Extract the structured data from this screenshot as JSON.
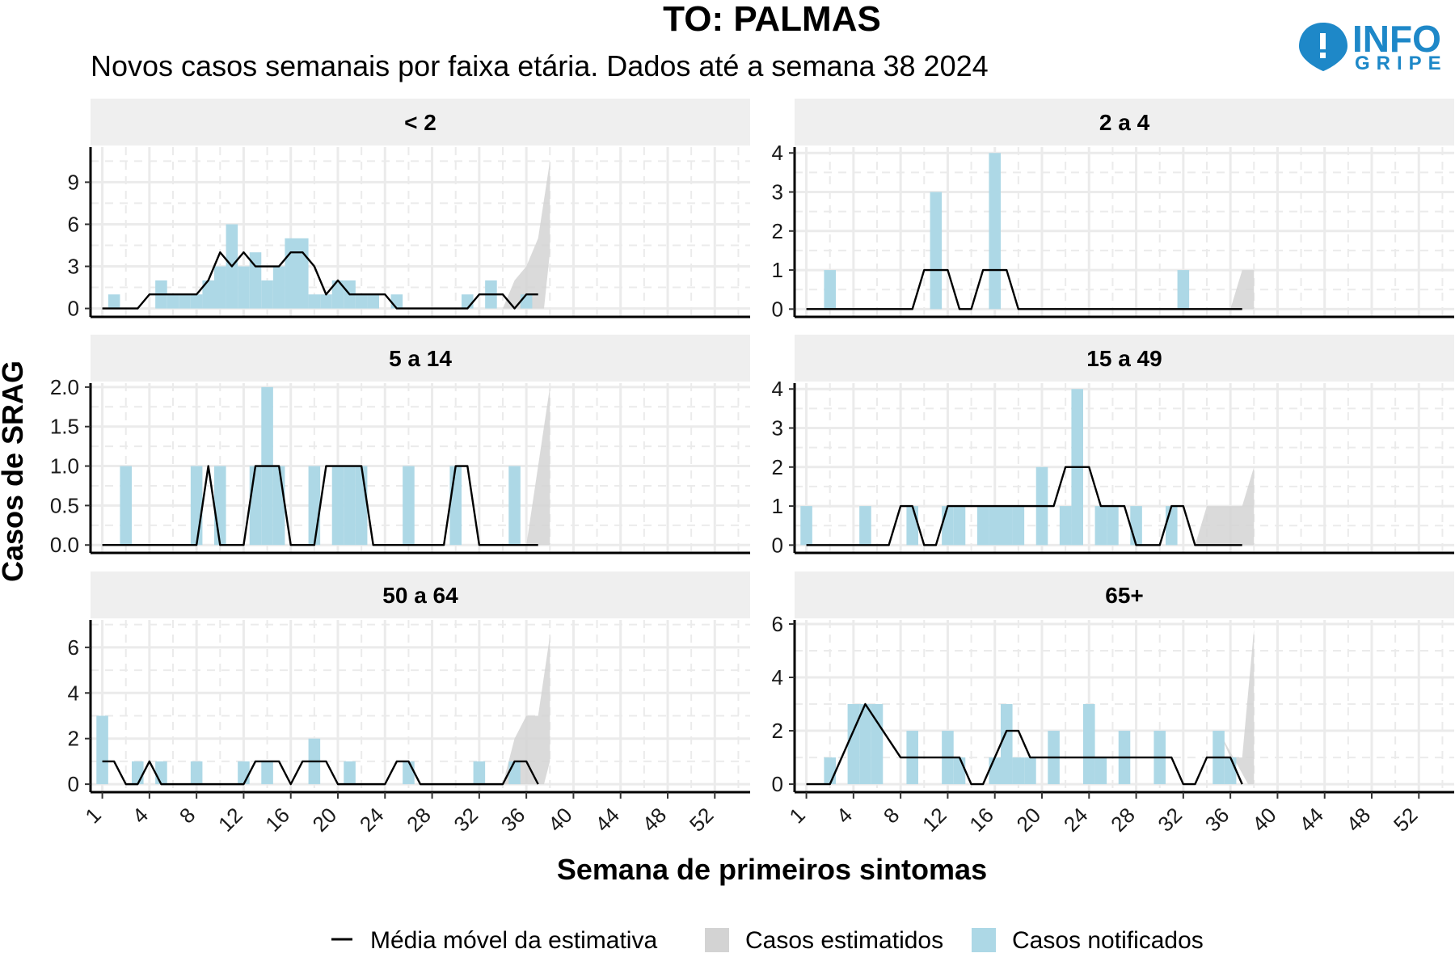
{
  "header": {
    "title": "TO: PALMAS",
    "subtitle": "Novos casos semanais por faixa etária. Dados até a semana 38 2024"
  },
  "logo": {
    "line1": "INFO",
    "line2": "GRIPE",
    "color": "#1e88c8"
  },
  "colors": {
    "notified": "#add8e6",
    "estimated": "#d3d3d3",
    "moving_avg": "#000000",
    "strip_bg": "#efefef",
    "grid": "#ebebeb"
  },
  "axis": {
    "x_title": "Semana de primeiros sintomas",
    "y_title": "Casos de SRAG",
    "x_tick_labels": [
      "1",
      "4",
      "8",
      "12",
      "16",
      "20",
      "24",
      "28",
      "32",
      "36",
      "40",
      "44",
      "48",
      "52"
    ]
  },
  "legend": {
    "position": "bottom",
    "items": [
      {
        "label": "Média móvel da estimativa",
        "kind": "line"
      },
      {
        "label": "Casos estimatidos",
        "kind": "estimated"
      },
      {
        "label": "Casos notificados",
        "kind": "notified"
      }
    ]
  },
  "chart_data": [
    {
      "type": "bar",
      "panel": "< 2",
      "xlim": [
        -1,
        55
      ],
      "ylim": [
        -0.6,
        11.5
      ],
      "y_ticks": [
        0,
        3,
        6,
        9
      ],
      "y_tick_labels": [
        "0",
        "3",
        "6",
        "9"
      ],
      "notified": [
        [
          1,
          1
        ],
        [
          5,
          2
        ],
        [
          6,
          1
        ],
        [
          7,
          1
        ],
        [
          8,
          1
        ],
        [
          9,
          2
        ],
        [
          10,
          3
        ],
        [
          11,
          6
        ],
        [
          12,
          3
        ],
        [
          13,
          4
        ],
        [
          14,
          2
        ],
        [
          15,
          3
        ],
        [
          16,
          5
        ],
        [
          17,
          5
        ],
        [
          18,
          1
        ],
        [
          19,
          1
        ],
        [
          20,
          2
        ],
        [
          21,
          2
        ],
        [
          22,
          1
        ],
        [
          23,
          1
        ],
        [
          25,
          1
        ],
        [
          31,
          1
        ],
        [
          33,
          2
        ],
        [
          36,
          1
        ]
      ],
      "estimated_upper": [
        [
          34,
          0
        ],
        [
          35,
          2
        ],
        [
          36,
          3
        ],
        [
          37,
          5
        ],
        [
          38,
          10.5
        ]
      ],
      "estimated_lower": [
        [
          38,
          4
        ]
      ],
      "moving_avg": [
        [
          0,
          0
        ],
        [
          3,
          0
        ],
        [
          4,
          1
        ],
        [
          8,
          1
        ],
        [
          9,
          2
        ],
        [
          10,
          4
        ],
        [
          11,
          3
        ],
        [
          12,
          4
        ],
        [
          13,
          3
        ],
        [
          15,
          3
        ],
        [
          16,
          4
        ],
        [
          17,
          4
        ],
        [
          18,
          3
        ],
        [
          19,
          1
        ],
        [
          20,
          2
        ],
        [
          21,
          1
        ],
        [
          24,
          1
        ],
        [
          25,
          0
        ],
        [
          31,
          0
        ],
        [
          32,
          1
        ],
        [
          34,
          1
        ],
        [
          35,
          0
        ],
        [
          36,
          1
        ],
        [
          37,
          1
        ]
      ]
    },
    {
      "type": "bar",
      "panel": "2 a 4",
      "xlim": [
        -1,
        55
      ],
      "ylim": [
        -0.2,
        4.15
      ],
      "y_ticks": [
        0,
        1,
        2,
        3,
        4
      ],
      "y_tick_labels": [
        "0",
        "1",
        "2",
        "3",
        "4"
      ],
      "notified": [
        [
          2,
          1
        ],
        [
          11,
          3
        ],
        [
          16,
          4
        ],
        [
          32,
          1
        ]
      ],
      "estimated_upper": [
        [
          36,
          0
        ],
        [
          37,
          1
        ],
        [
          38,
          1
        ]
      ],
      "estimated_lower": [
        [
          38,
          0
        ]
      ],
      "moving_avg": [
        [
          0,
          0
        ],
        [
          9,
          0
        ],
        [
          10,
          1
        ],
        [
          12,
          1
        ],
        [
          13,
          0
        ],
        [
          14,
          0
        ],
        [
          15,
          1
        ],
        [
          17,
          1
        ],
        [
          18,
          0
        ],
        [
          37,
          0
        ]
      ]
    },
    {
      "type": "bar",
      "panel": "5 a 14",
      "xlim": [
        -1,
        55
      ],
      "ylim": [
        -0.1,
        2.05
      ],
      "y_ticks": [
        0,
        0.5,
        1,
        1.5,
        2
      ],
      "y_tick_labels": [
        "0.0",
        "0.5",
        "1.0",
        "1.5",
        "2.0"
      ],
      "notified": [
        [
          2,
          1
        ],
        [
          8,
          1
        ],
        [
          10,
          1
        ],
        [
          13,
          1
        ],
        [
          14,
          2
        ],
        [
          15,
          1
        ],
        [
          18,
          1
        ],
        [
          20,
          1
        ],
        [
          21,
          1
        ],
        [
          22,
          1
        ],
        [
          26,
          1
        ],
        [
          30,
          1
        ],
        [
          35,
          1
        ]
      ],
      "estimated_upper": [
        [
          36,
          0
        ],
        [
          37,
          1
        ],
        [
          38,
          2
        ]
      ],
      "estimated_lower": [
        [
          38,
          0
        ]
      ],
      "moving_avg": [
        [
          0,
          0
        ],
        [
          8,
          0
        ],
        [
          9,
          1
        ],
        [
          10,
          0
        ],
        [
          12,
          0
        ],
        [
          13,
          1
        ],
        [
          15,
          1
        ],
        [
          16,
          0
        ],
        [
          18,
          0
        ],
        [
          19,
          1
        ],
        [
          22,
          1
        ],
        [
          23,
          0
        ],
        [
          29,
          0
        ],
        [
          30,
          1
        ],
        [
          31,
          1
        ],
        [
          32,
          0
        ],
        [
          37,
          0
        ]
      ]
    },
    {
      "type": "bar",
      "panel": "15 a 49",
      "xlim": [
        -1,
        55
      ],
      "ylim": [
        -0.2,
        4.15
      ],
      "y_ticks": [
        0,
        1,
        2,
        3,
        4
      ],
      "y_tick_labels": [
        "0",
        "1",
        "2",
        "3",
        "4"
      ],
      "notified": [
        [
          0,
          1
        ],
        [
          5,
          1
        ],
        [
          9,
          1
        ],
        [
          12,
          1
        ],
        [
          13,
          1
        ],
        [
          15,
          1
        ],
        [
          16,
          1
        ],
        [
          17,
          1
        ],
        [
          18,
          1
        ],
        [
          20,
          2
        ],
        [
          22,
          1
        ],
        [
          23,
          4
        ],
        [
          25,
          1
        ],
        [
          26,
          1
        ],
        [
          28,
          1
        ],
        [
          31,
          1
        ]
      ],
      "estimated_upper": [
        [
          33,
          0
        ],
        [
          34,
          1
        ],
        [
          36,
          1
        ],
        [
          37,
          1
        ],
        [
          38,
          2
        ]
      ],
      "estimated_lower": [
        [
          38,
          0
        ]
      ],
      "moving_avg": [
        [
          0,
          0
        ],
        [
          7,
          0
        ],
        [
          8,
          1
        ],
        [
          9,
          1
        ],
        [
          10,
          0
        ],
        [
          11,
          0
        ],
        [
          12,
          1
        ],
        [
          21,
          1
        ],
        [
          22,
          2
        ],
        [
          24,
          2
        ],
        [
          25,
          1
        ],
        [
          27,
          1
        ],
        [
          28,
          0
        ],
        [
          30,
          0
        ],
        [
          31,
          1
        ],
        [
          32,
          1
        ],
        [
          33,
          0
        ],
        [
          37,
          0
        ]
      ]
    },
    {
      "type": "bar",
      "panel": "50 a 64",
      "xlim": [
        -1,
        55
      ],
      "ylim": [
        -0.35,
        7.2
      ],
      "y_ticks": [
        0,
        2,
        4,
        6
      ],
      "y_tick_labels": [
        "0",
        "2",
        "4",
        "6"
      ],
      "notified": [
        [
          0,
          3
        ],
        [
          3,
          1
        ],
        [
          5,
          1
        ],
        [
          8,
          1
        ],
        [
          12,
          1
        ],
        [
          14,
          1
        ],
        [
          18,
          2
        ],
        [
          21,
          1
        ],
        [
          26,
          1
        ],
        [
          32,
          1
        ],
        [
          35,
          1
        ]
      ],
      "estimated_upper": [
        [
          34,
          0
        ],
        [
          35,
          2
        ],
        [
          36,
          3
        ],
        [
          37,
          3
        ],
        [
          38,
          6.5
        ]
      ],
      "estimated_lower": [
        [
          38,
          1
        ]
      ],
      "moving_avg": [
        [
          0,
          1
        ],
        [
          1,
          1
        ],
        [
          2,
          0
        ],
        [
          3,
          0
        ],
        [
          4,
          1
        ],
        [
          5,
          0
        ],
        [
          12,
          0
        ],
        [
          13,
          1
        ],
        [
          15,
          1
        ],
        [
          16,
          0
        ],
        [
          17,
          1
        ],
        [
          19,
          1
        ],
        [
          20,
          0
        ],
        [
          24,
          0
        ],
        [
          25,
          1
        ],
        [
          26,
          1
        ],
        [
          27,
          0
        ],
        [
          34,
          0
        ],
        [
          35,
          1
        ],
        [
          36,
          1
        ],
        [
          37,
          0
        ]
      ]
    },
    {
      "type": "bar",
      "panel": "65+",
      "xlim": [
        -1,
        55
      ],
      "ylim": [
        -0.3,
        6.15
      ],
      "y_ticks": [
        0,
        2,
        4,
        6
      ],
      "y_tick_labels": [
        "0",
        "2",
        "4",
        "6"
      ],
      "notified": [
        [
          2,
          1
        ],
        [
          4,
          3
        ],
        [
          5,
          3
        ],
        [
          6,
          3
        ],
        [
          9,
          2
        ],
        [
          12,
          2
        ],
        [
          13,
          1
        ],
        [
          16,
          1
        ],
        [
          17,
          3
        ],
        [
          18,
          1
        ],
        [
          19,
          1
        ],
        [
          21,
          2
        ],
        [
          24,
          3
        ],
        [
          25,
          1
        ],
        [
          27,
          2
        ],
        [
          30,
          2
        ],
        [
          35,
          2
        ],
        [
          36,
          1
        ]
      ],
      "estimated_upper": [
        [
          35,
          2
        ],
        [
          36,
          1
        ],
        [
          37,
          1
        ],
        [
          38,
          5.8
        ]
      ],
      "estimated_lower": [
        [
          38,
          0
        ]
      ],
      "moving_avg": [
        [
          0,
          0
        ],
        [
          2,
          0
        ],
        [
          5,
          3
        ],
        [
          8,
          1
        ],
        [
          13,
          1
        ],
        [
          14,
          0
        ],
        [
          15,
          0
        ],
        [
          17,
          2
        ],
        [
          18,
          2
        ],
        [
          19,
          1
        ],
        [
          31,
          1
        ],
        [
          32,
          0
        ],
        [
          33,
          0
        ],
        [
          34,
          1
        ],
        [
          36,
          1
        ],
        [
          37,
          0
        ]
      ]
    }
  ]
}
